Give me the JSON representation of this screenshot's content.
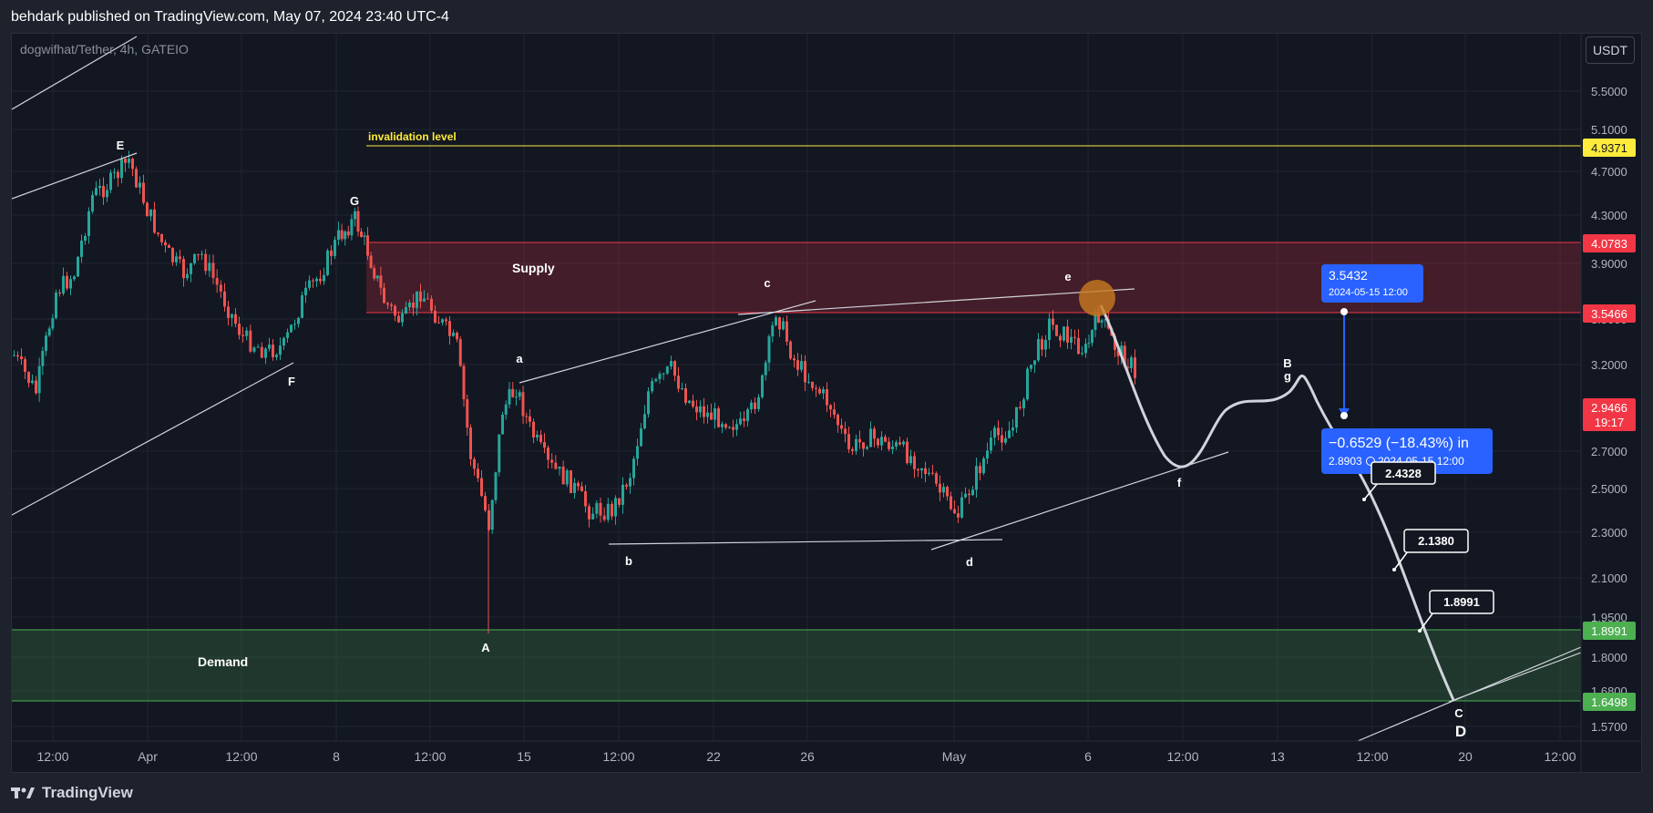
{
  "header": {
    "publisher": "behdark published on TradingView.com, May 07, 2024 23:40 UTC-4"
  },
  "symbol": "dogwifhat/Tether, 4h, GATEIO",
  "currency_button": "USDT",
  "footer": {
    "brand": "TradingView"
  },
  "colors": {
    "bull": "#26a69a",
    "bear": "#ef5350",
    "supply": "#f23645",
    "demand": "#4caf50",
    "invalidation": "#ffeb3b",
    "measure": "#2962ff",
    "projection": "#d1d4dc"
  },
  "chart_data": {
    "type": "candlestick",
    "title": "",
    "axis_right_ticks": [
      "5.5000",
      "5.1000",
      "4.7000",
      "4.3000",
      "3.9000",
      "3.5000",
      "3.2000",
      "2.7000",
      "2.5000",
      "2.3000",
      "2.1000",
      "1.9500",
      "1.8000",
      "1.6800",
      "1.5700"
    ],
    "axis_bottom_ticks": [
      "12:00",
      "Apr",
      "12:00",
      "8",
      "12:00",
      "15",
      "12:00",
      "22",
      "26",
      "May",
      "6",
      "12:00",
      "13",
      "12:00",
      "20",
      "12:00"
    ],
    "price_badges": [
      {
        "label": "4.9371",
        "kind": "invalidation"
      },
      {
        "label": "4.0783",
        "kind": "supply"
      },
      {
        "label": "3.5466",
        "kind": "supply"
      },
      {
        "label": "2.9466",
        "kind": "last",
        "sub": "19:17"
      },
      {
        "label": "1.8991",
        "kind": "demand"
      },
      {
        "label": "1.6498",
        "kind": "demand"
      }
    ],
    "zones": [
      {
        "name": "Supply",
        "top": 4.0783,
        "bottom": 3.5466
      },
      {
        "name": "Demand",
        "top": 1.8991,
        "bottom": 1.6498
      }
    ],
    "invalidation": {
      "label": "invalidation level",
      "price": 4.9371
    },
    "wave_labels": [
      "E",
      "G",
      "F",
      "a",
      "b",
      "c",
      "d",
      "e",
      "f",
      "A",
      "B",
      "g",
      "C",
      "D"
    ],
    "measure": {
      "start_label": "3.5432",
      "start_date": "2024-05-15 12:00",
      "result": "−0.6529 (−18.43%) in",
      "end_price": "2.8903",
      "end_date": "2024-05-15  12:00"
    },
    "target_labels": [
      "2.4328",
      "2.1380",
      "1.8991"
    ]
  }
}
